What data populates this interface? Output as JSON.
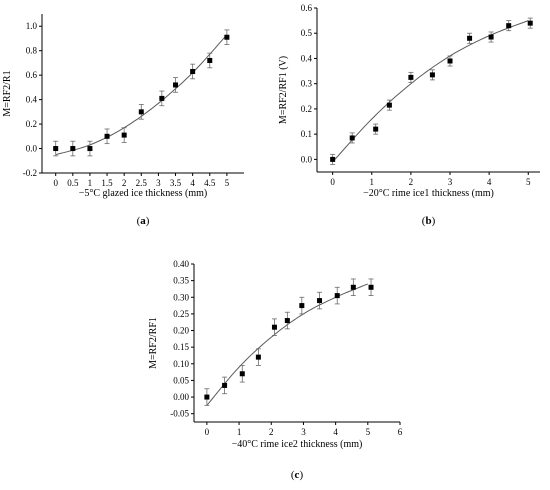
{
  "chart_data": [
    {
      "type": "scatter",
      "panel_label": "(a)",
      "xlabel": "−5°C glazed ice thickness (mm)",
      "ylabel": "M=RF2/R1",
      "xlim": [
        -0.4,
        5.5
      ],
      "ylim": [
        -0.2,
        1.1
      ],
      "xticks": [
        0,
        0.5,
        1,
        1.5,
        2,
        2.5,
        3,
        3.5,
        4,
        4.5,
        5
      ],
      "yticks": [
        -0.2,
        0.0,
        0.2,
        0.4,
        0.6,
        0.8,
        1.0
      ],
      "xtick_labels": [
        "0",
        "0.5",
        "1",
        "1.5",
        "2",
        "2.5",
        "3",
        "3.5",
        "4",
        "4.5",
        "5"
      ],
      "ytick_labels": [
        "-0.2",
        "0.0",
        "0.2",
        "0.4",
        "0.6",
        "0.8",
        "1.0"
      ],
      "series": [
        {
          "x": [
            0,
            0.5,
            1.0,
            1.5,
            2.0,
            2.5,
            3.1,
            3.5,
            4.0,
            4.5,
            5.0
          ],
          "y": [
            0.0,
            0.0,
            0.0,
            0.1,
            0.11,
            0.3,
            0.41,
            0.52,
            0.63,
            0.72,
            0.91
          ],
          "err": [
            0.06,
            0.06,
            0.06,
            0.06,
            0.06,
            0.06,
            0.06,
            0.06,
            0.06,
            0.06,
            0.06
          ]
        }
      ],
      "fit": {
        "x": [
          0,
          1,
          2,
          3,
          4,
          5
        ],
        "y": [
          -0.05,
          0.03,
          0.17,
          0.37,
          0.62,
          0.93
        ]
      }
    },
    {
      "type": "scatter",
      "panel_label": "(b)",
      "xlabel": "−20°C rime ice1 thickness (mm)",
      "ylabel": "M=RF2/RF1 (V)",
      "xlim": [
        -0.4,
        5.3
      ],
      "ylim": [
        -0.05,
        0.6
      ],
      "xticks": [
        0,
        1,
        2,
        3,
        4,
        5
      ],
      "yticks": [
        0.0,
        0.1,
        0.2,
        0.3,
        0.4,
        0.5,
        0.6
      ],
      "xtick_labels": [
        "0",
        "1",
        "2",
        "3",
        "4",
        "5"
      ],
      "ytick_labels": [
        "0.0",
        "0.1",
        "0.2",
        "0.3",
        "0.4",
        "0.5",
        "0.6"
      ],
      "series": [
        {
          "x": [
            0,
            0.5,
            1.1,
            1.45,
            2.0,
            2.55,
            3.0,
            3.5,
            4.05,
            4.5,
            5.05
          ],
          "y": [
            0.0,
            0.085,
            0.12,
            0.215,
            0.325,
            0.335,
            0.39,
            0.48,
            0.485,
            0.53,
            0.54
          ],
          "err": [
            0.02,
            0.02,
            0.02,
            0.02,
            0.02,
            0.02,
            0.02,
            0.02,
            0.02,
            0.02,
            0.02
          ]
        }
      ],
      "fit": {
        "x": [
          0,
          1,
          2,
          3,
          4,
          5
        ],
        "y": [
          -0.01,
          0.16,
          0.3,
          0.41,
          0.49,
          0.55
        ]
      }
    },
    {
      "type": "scatter",
      "panel_label": "(c)",
      "xlabel": "−40°C rime ice2 thickness (mm)",
      "ylabel": "M=RF2/RF1",
      "xlim": [
        -0.4,
        6
      ],
      "ylim": [
        -0.075,
        0.4
      ],
      "xticks": [
        0,
        1,
        2,
        3,
        4,
        5,
        6
      ],
      "yticks": [
        -0.05,
        0.0,
        0.05,
        0.1,
        0.15,
        0.2,
        0.25,
        0.3,
        0.35,
        0.4
      ],
      "xtick_labels": [
        "0",
        "1",
        "2",
        "3",
        "4",
        "5",
        "6"
      ],
      "ytick_labels": [
        "-0.05",
        "0.00",
        "0.05",
        "0.10",
        "0.15",
        "0.20",
        "0.25",
        "0.30",
        "0.35",
        "0.40"
      ],
      "series": [
        {
          "x": [
            0,
            0.55,
            1.1,
            1.6,
            2.1,
            2.5,
            2.95,
            3.5,
            4.05,
            4.55,
            5.1
          ],
          "y": [
            0.0,
            0.035,
            0.07,
            0.12,
            0.21,
            0.23,
            0.275,
            0.29,
            0.305,
            0.33,
            0.33
          ],
          "err": [
            0.025,
            0.025,
            0.025,
            0.025,
            0.025,
            0.025,
            0.025,
            0.025,
            0.025,
            0.025,
            0.025
          ]
        }
      ],
      "fit": {
        "x": [
          0,
          1,
          2,
          3,
          4,
          5
        ],
        "y": [
          -0.025,
          0.09,
          0.18,
          0.25,
          0.3,
          0.34
        ]
      }
    }
  ]
}
